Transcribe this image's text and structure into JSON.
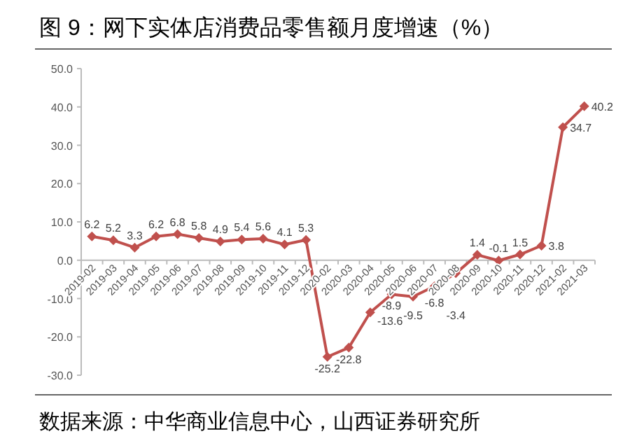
{
  "chart_data": {
    "type": "line",
    "title": "图 9：网下实体店消费品零售额月度增速（%）",
    "categories": [
      "2019-02",
      "2019-03",
      "2019-04",
      "2019-05",
      "2019-06",
      "2019-07",
      "2019-08",
      "2019-09",
      "2019-10",
      "2019-11",
      "2019-12",
      "2020-02",
      "2020-03",
      "2020-04",
      "2020-05",
      "2020-06",
      "2020-07",
      "2020-08",
      "2020-09",
      "2020-10",
      "2020-11",
      "2020-12",
      "2021-02",
      "2021-03"
    ],
    "series": [
      {
        "color": "#c0504d",
        "values": [
          6.2,
          5.2,
          3.3,
          6.2,
          6.8,
          5.8,
          4.9,
          5.4,
          5.6,
          4.1,
          5.3,
          -25.2,
          -22.8,
          -13.6,
          -8.9,
          -9.5,
          -6.8,
          -3.4,
          1.4,
          -0.1,
          1.5,
          3.8,
          34.7,
          40.2
        ]
      }
    ],
    "ylim": [
      -30,
      50
    ],
    "yticks": [
      "-30.0",
      "-20.0",
      "-10.0",
      "0.0",
      "10.0",
      "20.0",
      "30.0",
      "40.0",
      "50.0"
    ],
    "data_labels": true,
    "marker": "diamond",
    "line_style": "solid",
    "grid": false,
    "annotations": [
      "数据来源：中华商业信息中心，山西证券研究所"
    ]
  }
}
